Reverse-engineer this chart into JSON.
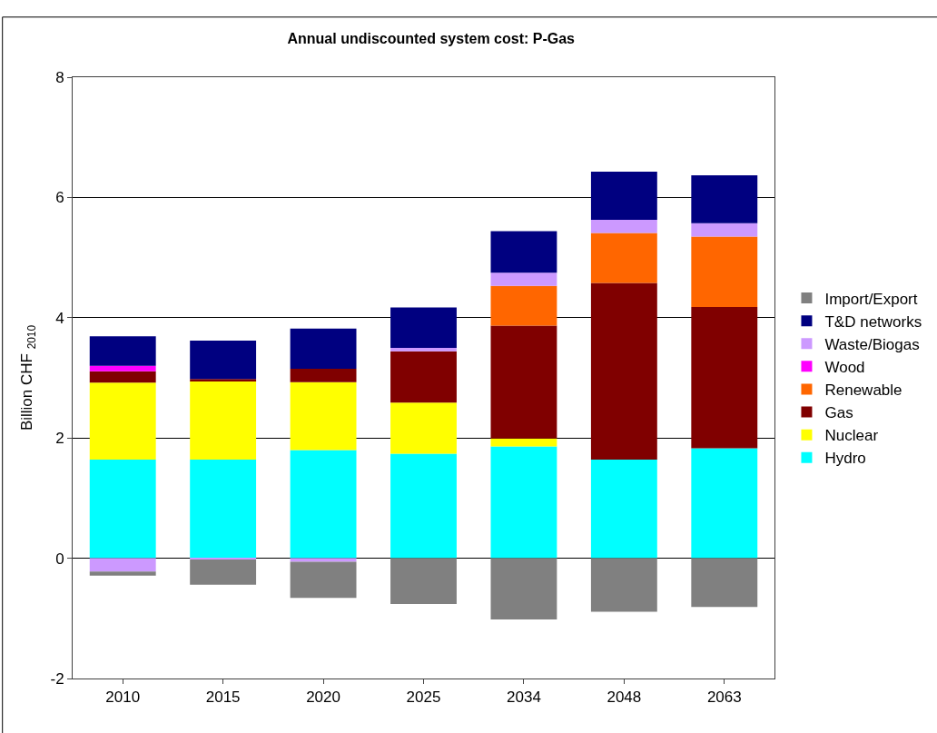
{
  "chart_data": {
    "type": "bar",
    "title": "Annual undiscounted system cost: P-Gas",
    "ylabel": "Billion CHF $_{2010}$",
    "categories": [
      "2010",
      "2015",
      "2020",
      "2025",
      "2034",
      "2048",
      "2063"
    ],
    "stacked": true,
    "ylim": [
      -2,
      8
    ],
    "yticks": [
      -2,
      0,
      2,
      4,
      6,
      8
    ],
    "grid": "y",
    "legend": "right",
    "series": [
      {
        "name": "Hydro",
        "color": "#00ffff",
        "values": [
          1.64,
          1.64,
          1.8,
          1.74,
          1.86,
          1.64,
          1.83
        ]
      },
      {
        "name": "Nuclear",
        "color": "#ffff00",
        "values": [
          1.28,
          1.31,
          1.13,
          0.85,
          0.13,
          0,
          0
        ]
      },
      {
        "name": "Gas",
        "color": "#800000",
        "values": [
          0.19,
          0.03,
          0.22,
          0.85,
          1.88,
          2.94,
          2.35
        ]
      },
      {
        "name": "Renewable",
        "color": "#ff6600",
        "values": [
          0,
          0,
          0,
          0,
          0.66,
          0.83,
          1.17
        ]
      },
      {
        "name": "Wood",
        "color": "#ff00ff",
        "values": [
          0.09,
          0,
          0,
          0,
          0,
          0,
          0
        ]
      },
      {
        "name": "Waste/Biogas",
        "color": "#cc99ff",
        "values": [
          -0.22,
          -0.02,
          -0.06,
          0.06,
          0.22,
          0.22,
          0.22
        ]
      },
      {
        "name": "T&D networks",
        "color": "#000080",
        "values": [
          0.49,
          0.64,
          0.67,
          0.67,
          0.69,
          0.8,
          0.8
        ]
      },
      {
        "name": "Import/Export",
        "color": "#808080",
        "values": [
          -0.07,
          -0.42,
          -0.6,
          -0.76,
          -1.02,
          -0.89,
          -0.81
        ]
      }
    ]
  }
}
